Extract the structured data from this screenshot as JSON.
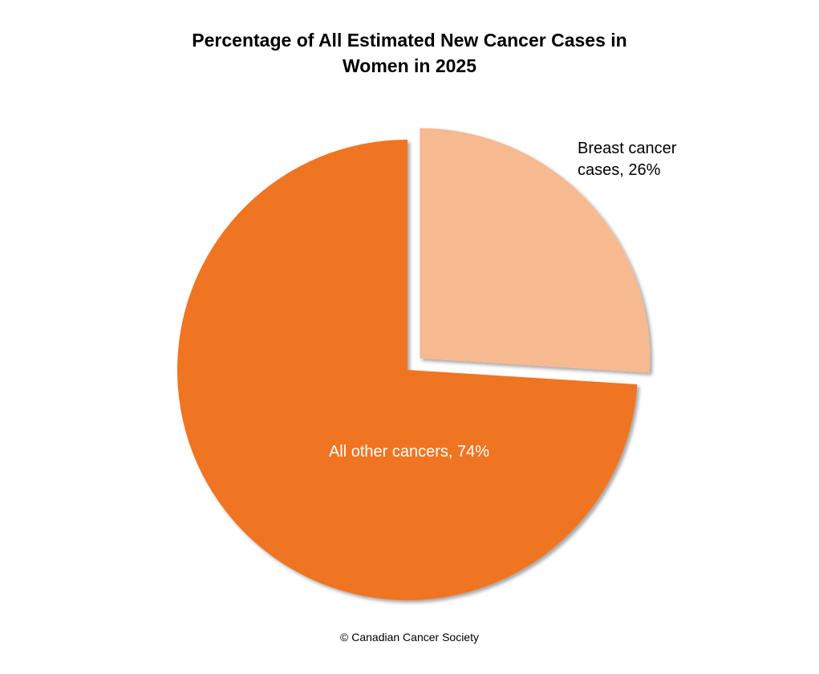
{
  "chart_data": {
    "type": "pie",
    "title": "Percentage of All Estimated New Cancer Cases in Women in 2025",
    "values": [
      26,
      74
    ],
    "value_labels": [
      "Breast cancer cases, 26%",
      "All other cancers, 74%"
    ],
    "colors": [
      "#f7b98f",
      "#f07522"
    ],
    "source": "© Canadian Cancer Society"
  }
}
